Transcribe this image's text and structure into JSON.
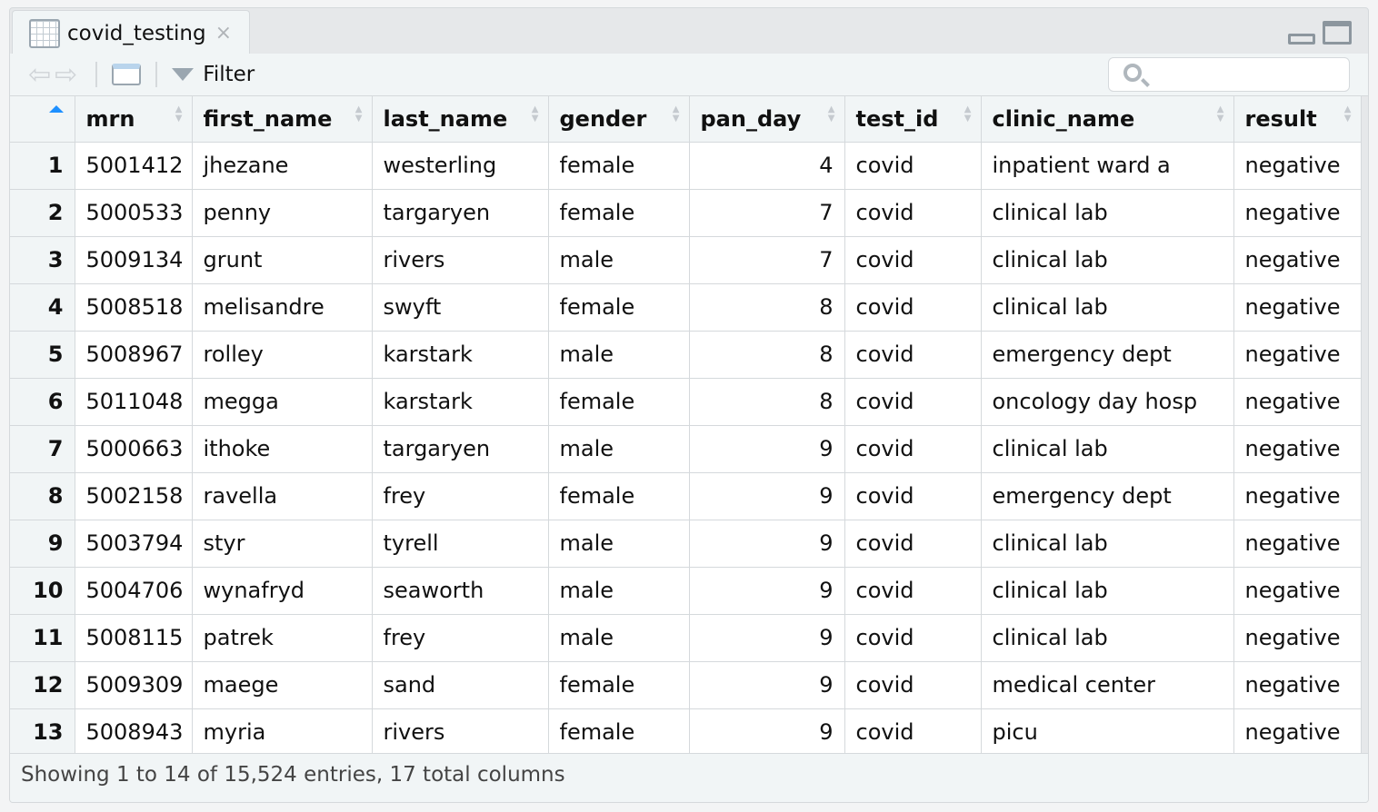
{
  "tab": {
    "title": "covid_testing",
    "close": "×",
    "icon": "table-grid-icon"
  },
  "toolbar": {
    "filter_label": "Filter",
    "search_value": "",
    "back_icon": "back-arrow-icon",
    "forward_icon": "forward-arrow-icon",
    "popout_icon": "popout-window-icon"
  },
  "columns": [
    "mrn",
    "first_name",
    "last_name",
    "gender",
    "pan_day",
    "test_id",
    "clinic_name",
    "result"
  ],
  "sort": {
    "column": "row-index",
    "direction": "ascending",
    "accent": "#1e90ff"
  },
  "rows": [
    [
      "1",
      "5001412",
      "jhezane",
      "westerling",
      "female",
      "4",
      "covid",
      "inpatient ward a",
      "negative"
    ],
    [
      "2",
      "5000533",
      "penny",
      "targaryen",
      "female",
      "7",
      "covid",
      "clinical lab",
      "negative"
    ],
    [
      "3",
      "5009134",
      "grunt",
      "rivers",
      "male",
      "7",
      "covid",
      "clinical lab",
      "negative"
    ],
    [
      "4",
      "5008518",
      "melisandre",
      "swyft",
      "female",
      "8",
      "covid",
      "clinical lab",
      "negative"
    ],
    [
      "5",
      "5008967",
      "rolley",
      "karstark",
      "male",
      "8",
      "covid",
      "emergency dept",
      "negative"
    ],
    [
      "6",
      "5011048",
      "megga",
      "karstark",
      "female",
      "8",
      "covid",
      "oncology day hosp",
      "negative"
    ],
    [
      "7",
      "5000663",
      "ithoke",
      "targaryen",
      "male",
      "9",
      "covid",
      "clinical lab",
      "negative"
    ],
    [
      "8",
      "5002158",
      "ravella",
      "frey",
      "female",
      "9",
      "covid",
      "emergency dept",
      "negative"
    ],
    [
      "9",
      "5003794",
      "styr",
      "tyrell",
      "male",
      "9",
      "covid",
      "clinical lab",
      "negative"
    ],
    [
      "10",
      "5004706",
      "wynafryd",
      "seaworth",
      "male",
      "9",
      "covid",
      "clinical lab",
      "negative"
    ],
    [
      "11",
      "5008115",
      "patrek",
      "frey",
      "male",
      "9",
      "covid",
      "clinical lab",
      "negative"
    ],
    [
      "12",
      "5009309",
      "maege",
      "sand",
      "female",
      "9",
      "covid",
      "medical center",
      "negative"
    ],
    [
      "13",
      "5008943",
      "myria",
      "rivers",
      "female",
      "9",
      "covid",
      "picu",
      "negative"
    ]
  ],
  "footer": {
    "status": "Showing 1 to 14 of 15,524 entries, 17 total columns"
  }
}
